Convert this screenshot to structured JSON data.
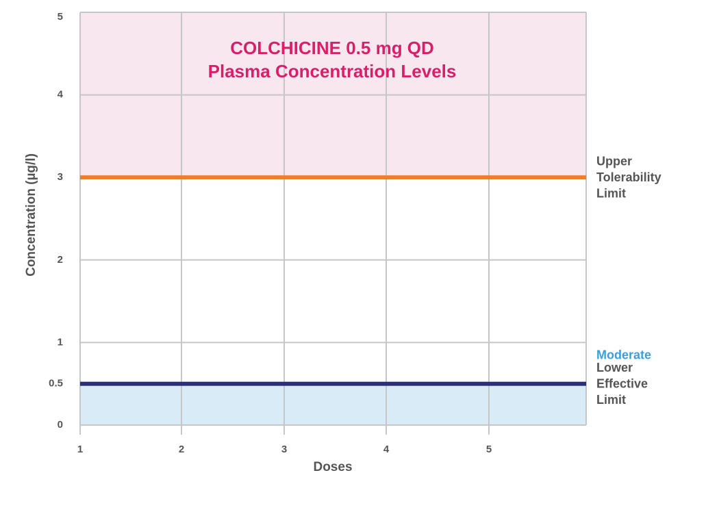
{
  "chart_data": {
    "type": "line",
    "title_lines": [
      "COLCHICINE 0.5 mg QD",
      "Plasma Concentration Levels"
    ],
    "xlabel": "Doses",
    "ylabel": "Concentration (µg/l)",
    "x_ticks": [
      "1",
      "2",
      "3",
      "4",
      "5"
    ],
    "y_ticks": [
      {
        "value": 0,
        "label": "0"
      },
      {
        "value": 0.5,
        "label": "0.5"
      },
      {
        "value": 1,
        "label": "1"
      },
      {
        "value": 2,
        "label": "2"
      },
      {
        "value": 3,
        "label": "3"
      },
      {
        "value": 4,
        "label": "4"
      },
      {
        "value": 5,
        "label": "5"
      }
    ],
    "ylim": [
      0,
      5
    ],
    "grid": true,
    "bands": [
      {
        "from": 3,
        "to": 5,
        "color": "#f9e7f0"
      },
      {
        "from": 0,
        "to": 0.5,
        "color": "#d8ebf6"
      }
    ],
    "reference_lines": [
      {
        "value": 3,
        "label_lines": [
          "Upper",
          "Tolerability",
          "Limit"
        ],
        "color": "#f47b2a",
        "label_color": "#555555"
      },
      {
        "value": 0.5,
        "label_lines": [
          "Lower",
          "Effective",
          "Limit"
        ],
        "color": "#2b2e7a",
        "label_color": "#555555"
      }
    ],
    "zone_labels": [
      {
        "label": "Moderate",
        "color": "#3a9fd9"
      }
    ],
    "colors": {
      "title": "#d81f6a",
      "grid": "#c4c6c9",
      "text": "#555555"
    }
  }
}
